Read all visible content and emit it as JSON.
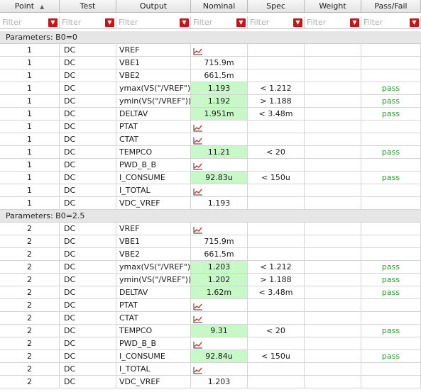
{
  "columns": {
    "point": "Point",
    "test": "Test",
    "output": "Output",
    "nominal": "Nominal",
    "spec": "Spec",
    "weight": "Weight",
    "pass_fail": "Pass/Fail"
  },
  "filter_placeholder": "Filter",
  "sort_icon": "sort-up-icon",
  "plot_icon": "waveform-plot-icon",
  "colors": {
    "pass_bg": "#c8f7c8",
    "pass_text": "#2a9a2a",
    "filter_btn": "#c0161c",
    "group_bg": "#e6e6e6"
  },
  "groups": [
    {
      "label": "Parameters: B0=0",
      "rows": [
        {
          "point": "1",
          "test": "DC",
          "output": "VREF",
          "nominal": "",
          "plot": true,
          "highlight": false,
          "spec": "",
          "pass_fail": ""
        },
        {
          "point": "1",
          "test": "DC",
          "output": "VBE1",
          "nominal": "715.9m",
          "plot": false,
          "highlight": false,
          "spec": "",
          "pass_fail": ""
        },
        {
          "point": "1",
          "test": "DC",
          "output": "VBE2",
          "nominal": "661.5m",
          "plot": false,
          "highlight": false,
          "spec": "",
          "pass_fail": ""
        },
        {
          "point": "1",
          "test": "DC",
          "output": "ymax(VS(\"/VREF\"))",
          "nominal": "1.193",
          "plot": false,
          "highlight": true,
          "spec": "< 1.212",
          "pass_fail": "pass"
        },
        {
          "point": "1",
          "test": "DC",
          "output": "ymin(VS(\"/VREF\"))",
          "nominal": "1.192",
          "plot": false,
          "highlight": true,
          "spec": "> 1.188",
          "pass_fail": "pass"
        },
        {
          "point": "1",
          "test": "DC",
          "output": "DELTAV",
          "nominal": "1.951m",
          "plot": false,
          "highlight": true,
          "spec": "< 3.48m",
          "pass_fail": "pass"
        },
        {
          "point": "1",
          "test": "DC",
          "output": "PTAT",
          "nominal": "",
          "plot": true,
          "highlight": false,
          "spec": "",
          "pass_fail": ""
        },
        {
          "point": "1",
          "test": "DC",
          "output": "CTAT",
          "nominal": "",
          "plot": true,
          "highlight": false,
          "spec": "",
          "pass_fail": ""
        },
        {
          "point": "1",
          "test": "DC",
          "output": "TEMPCO",
          "nominal": "11.21",
          "plot": false,
          "highlight": true,
          "spec": "< 20",
          "pass_fail": "pass"
        },
        {
          "point": "1",
          "test": "DC",
          "output": "PWD_B_B",
          "nominal": "",
          "plot": true,
          "highlight": false,
          "spec": "",
          "pass_fail": ""
        },
        {
          "point": "1",
          "test": "DC",
          "output": "I_CONSUME",
          "nominal": "92.83u",
          "plot": false,
          "highlight": true,
          "spec": "< 150u",
          "pass_fail": "pass"
        },
        {
          "point": "1",
          "test": "DC",
          "output": "I_TOTAL",
          "nominal": "",
          "plot": true,
          "highlight": false,
          "spec": "",
          "pass_fail": ""
        },
        {
          "point": "1",
          "test": "DC",
          "output": "VDC_VREF",
          "nominal": "1.193",
          "plot": false,
          "highlight": false,
          "spec": "",
          "pass_fail": ""
        }
      ]
    },
    {
      "label": "Parameters: B0=2.5",
      "rows": [
        {
          "point": "2",
          "test": "DC",
          "output": "VREF",
          "nominal": "",
          "plot": true,
          "highlight": false,
          "spec": "",
          "pass_fail": ""
        },
        {
          "point": "2",
          "test": "DC",
          "output": "VBE1",
          "nominal": "715.9m",
          "plot": false,
          "highlight": false,
          "spec": "",
          "pass_fail": ""
        },
        {
          "point": "2",
          "test": "DC",
          "output": "VBE2",
          "nominal": "661.5m",
          "plot": false,
          "highlight": false,
          "spec": "",
          "pass_fail": ""
        },
        {
          "point": "2",
          "test": "DC",
          "output": "ymax(VS(\"/VREF\"))",
          "nominal": "1.203",
          "plot": false,
          "highlight": true,
          "spec": "< 1.212",
          "pass_fail": "pass"
        },
        {
          "point": "2",
          "test": "DC",
          "output": "ymin(VS(\"/VREF\"))",
          "nominal": "1.202",
          "plot": false,
          "highlight": true,
          "spec": "> 1.188",
          "pass_fail": "pass"
        },
        {
          "point": "2",
          "test": "DC",
          "output": "DELTAV",
          "nominal": "1.62m",
          "plot": false,
          "highlight": true,
          "spec": "< 3.48m",
          "pass_fail": "pass"
        },
        {
          "point": "2",
          "test": "DC",
          "output": "PTAT",
          "nominal": "",
          "plot": true,
          "highlight": false,
          "spec": "",
          "pass_fail": ""
        },
        {
          "point": "2",
          "test": "DC",
          "output": "CTAT",
          "nominal": "",
          "plot": true,
          "highlight": false,
          "spec": "",
          "pass_fail": ""
        },
        {
          "point": "2",
          "test": "DC",
          "output": "TEMPCO",
          "nominal": "9.31",
          "plot": false,
          "highlight": true,
          "spec": "< 20",
          "pass_fail": "pass"
        },
        {
          "point": "2",
          "test": "DC",
          "output": "PWD_B_B",
          "nominal": "",
          "plot": true,
          "highlight": false,
          "spec": "",
          "pass_fail": ""
        },
        {
          "point": "2",
          "test": "DC",
          "output": "I_CONSUME",
          "nominal": "92.84u",
          "plot": false,
          "highlight": true,
          "spec": "< 150u",
          "pass_fail": "pass"
        },
        {
          "point": "2",
          "test": "DC",
          "output": "I_TOTAL",
          "nominal": "",
          "plot": true,
          "highlight": false,
          "spec": "",
          "pass_fail": ""
        },
        {
          "point": "2",
          "test": "DC",
          "output": "VDC_VREF",
          "nominal": "1.203",
          "plot": false,
          "highlight": false,
          "spec": "",
          "pass_fail": ""
        }
      ]
    }
  ]
}
